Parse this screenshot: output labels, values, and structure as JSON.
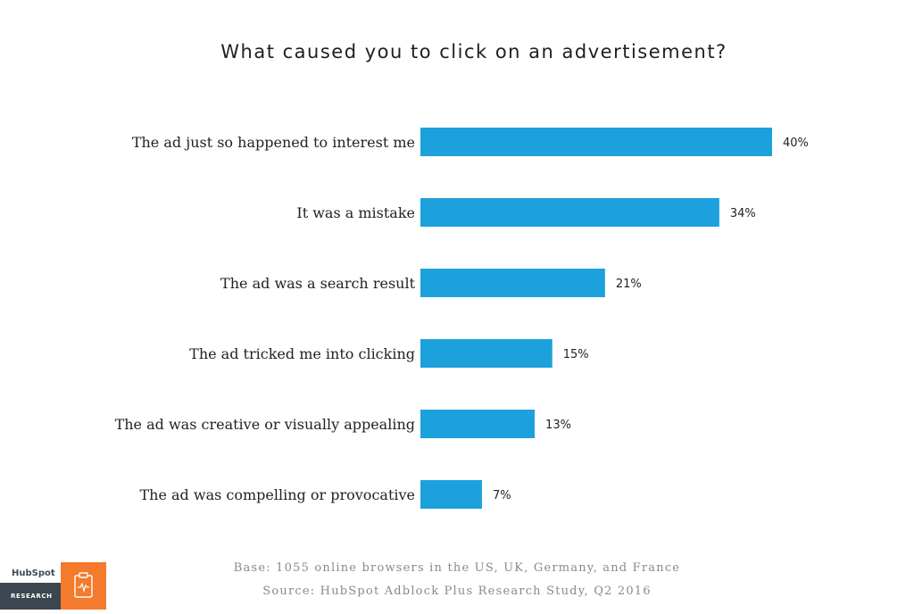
{
  "chart_data": {
    "type": "bar",
    "orientation": "horizontal",
    "title": "What caused you to click on an advertisement?",
    "categories": [
      "The ad just so happened to interest me",
      "It was a mistake",
      "The ad was a search result",
      "The ad tricked me into clicking",
      "The ad was creative or visually appealing",
      "The ad was compelling or provocative"
    ],
    "values": [
      40,
      34,
      21,
      15,
      13,
      7
    ],
    "value_labels": [
      "40%",
      "34%",
      "21%",
      "15%",
      "13%",
      "7%"
    ],
    "unit": "%",
    "xlim": [
      0,
      40
    ],
    "grid": false,
    "legend": "none",
    "bar_color": "#1da1dc"
  },
  "footnotes": {
    "base": "Base: 1055 online browsers in the US, UK, Germany, and France",
    "source": "Source: HubSpot Adblock Plus Research Study, Q2 2016"
  },
  "branding": {
    "logo_text": "HubSpot",
    "logo_sub": "RESEARCH",
    "logo_color": "#404a55",
    "accent_color": "#f47a2c",
    "badge_icon": "clipboard-pulse-icon"
  }
}
